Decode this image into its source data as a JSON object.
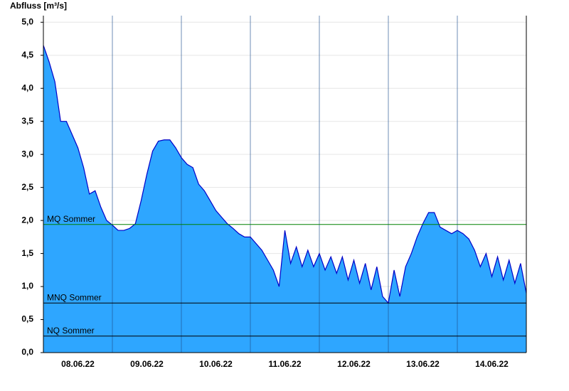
{
  "chart_data": {
    "type": "area",
    "y_label": "Abfluss [m³/s]",
    "x": [
      0,
      2,
      4,
      6,
      8,
      10,
      12,
      14,
      16,
      18,
      20,
      22,
      24,
      26,
      28,
      30,
      32,
      34,
      36,
      38,
      40,
      42,
      44,
      46,
      48,
      50,
      52,
      54,
      56,
      58,
      60,
      62,
      64,
      66,
      68,
      70,
      72,
      74,
      76,
      78,
      80,
      82,
      84,
      86,
      88,
      90,
      92,
      94,
      96,
      98,
      100,
      102,
      104,
      106,
      108,
      110,
      112,
      114,
      116,
      118,
      120,
      122,
      124,
      126,
      128,
      130,
      132,
      134,
      136,
      138,
      140,
      142,
      144,
      146,
      148,
      150,
      152,
      154,
      156,
      158,
      160,
      162,
      164,
      166,
      168
    ],
    "series": [
      {
        "name": "Abfluss",
        "color": "#2ea6ff",
        "line_color": "#0000c8",
        "values": [
          4.65,
          4.4,
          4.1,
          3.5,
          3.5,
          3.3,
          3.1,
          2.8,
          2.4,
          2.45,
          2.2,
          2.0,
          1.93,
          1.85,
          1.85,
          1.88,
          1.95,
          2.3,
          2.7,
          3.05,
          3.2,
          3.22,
          3.22,
          3.1,
          2.95,
          2.85,
          2.8,
          2.55,
          2.45,
          2.3,
          2.15,
          2.05,
          1.95,
          1.88,
          1.8,
          1.75,
          1.75,
          1.65,
          1.55,
          1.4,
          1.25,
          1.0,
          1.85,
          1.35,
          1.6,
          1.3,
          1.55,
          1.3,
          1.5,
          1.25,
          1.45,
          1.2,
          1.45,
          1.1,
          1.4,
          1.05,
          1.35,
          0.95,
          1.3,
          0.85,
          0.75,
          1.25,
          0.85,
          1.3,
          1.5,
          1.75,
          1.95,
          2.12,
          2.12,
          1.9,
          1.85,
          1.8,
          1.85,
          1.8,
          1.72,
          1.55,
          1.3,
          1.5,
          1.15,
          1.45,
          1.1,
          1.4,
          1.05,
          1.35,
          0.9
        ]
      }
    ],
    "xlim": [
      0,
      168
    ],
    "xticks": [
      {
        "value": 12,
        "label": "08.06.22"
      },
      {
        "value": 36,
        "label": "09.06.22"
      },
      {
        "value": 60,
        "label": "10.06.22"
      },
      {
        "value": 84,
        "label": "11.06.22"
      },
      {
        "value": 108,
        "label": "12.06.22"
      },
      {
        "value": 132,
        "label": "13.06.22"
      },
      {
        "value": 156,
        "label": "14.06.22"
      }
    ],
    "day_lines": [
      24,
      48,
      72,
      96,
      120,
      144
    ],
    "ylim": [
      0,
      5.1
    ],
    "yticks": [
      {
        "value": 0,
        "label": "0,0"
      },
      {
        "value": 0.5,
        "label": "0,5"
      },
      {
        "value": 1,
        "label": "1,0"
      },
      {
        "value": 1.5,
        "label": "1,5"
      },
      {
        "value": 2,
        "label": "2,0"
      },
      {
        "value": 2.5,
        "label": "2,5"
      },
      {
        "value": 3,
        "label": "3,0"
      },
      {
        "value": 3.5,
        "label": "3,5"
      },
      {
        "value": 4,
        "label": "4,0"
      },
      {
        "value": 4.5,
        "label": "4,5"
      },
      {
        "value": 5,
        "label": "5,0"
      }
    ],
    "grid": true,
    "thresholds": [
      {
        "label": "MQ Sommer",
        "value": 1.94,
        "color": "#008000"
      },
      {
        "label": "MNQ Sommer",
        "value": 0.75,
        "color": "#000000"
      },
      {
        "label": "NQ Sommer",
        "value": 0.25,
        "color": "#000000"
      }
    ]
  }
}
